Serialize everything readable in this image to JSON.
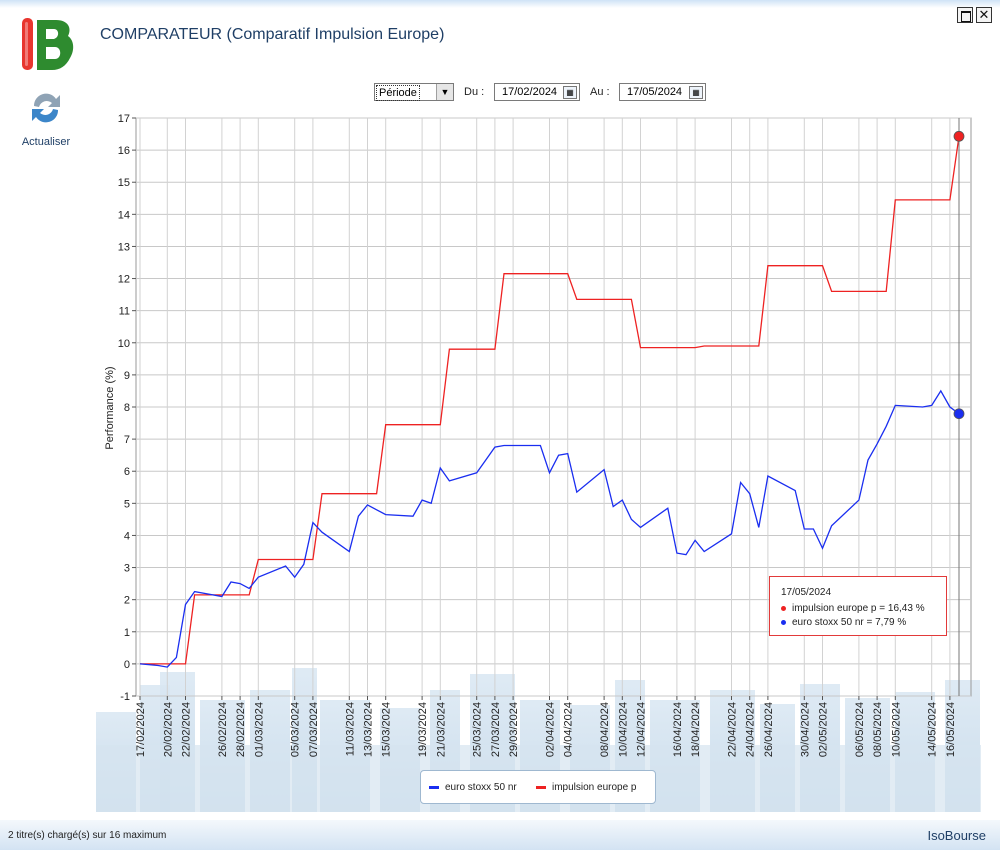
{
  "app": {
    "title": "COMPARATEUR (Comparatif Impulsion Europe)",
    "refresh_label": "Actualiser"
  },
  "window_controls": {
    "restore": "restore-icon",
    "close": "✕"
  },
  "filters": {
    "period_label": "Période",
    "from_label": "Du :",
    "from_value": "17/02/2024",
    "to_label": "Au :",
    "to_value": "17/05/2024"
  },
  "tooltip": {
    "date": "17/05/2024",
    "line1": "impulsion europe p = 16,43 %",
    "line2": "euro stoxx 50 nr = 7,79 %"
  },
  "legend": {
    "item1": "euro stoxx 50 nr",
    "item2": "impulsion europe p"
  },
  "status": {
    "left": "2 titre(s) chargé(s) sur 16 maximum",
    "right": "IsoBourse"
  },
  "colors": {
    "blue": "#1a2ef0",
    "red": "#ee2222",
    "grid": "#c8c8c8",
    "title": "#1f3f66"
  },
  "chart_data": {
    "type": "line",
    "ylabel": "Performance (%)",
    "ylim": [
      -1,
      17
    ],
    "yticks": [
      -1,
      0,
      1,
      2,
      3,
      4,
      5,
      6,
      7,
      8,
      9,
      10,
      11,
      12,
      13,
      14,
      15,
      16,
      17
    ],
    "xticks": [
      "17/02/2024",
      "20/02/2024",
      "22/02/2024",
      "26/02/2024",
      "28/02/2024",
      "01/03/2024",
      "05/03/2024",
      "07/03/2024",
      "11/03/2024",
      "13/03/2024",
      "15/03/2024",
      "19/03/2024",
      "21/03/2024",
      "25/03/2024",
      "27/03/2024",
      "29/03/2024",
      "02/04/2024",
      "04/04/2024",
      "08/04/2024",
      "10/04/2024",
      "12/04/2024",
      "16/04/2024",
      "18/04/2024",
      "22/04/2024",
      "24/04/2024",
      "26/04/2024",
      "30/04/2024",
      "02/05/2024",
      "06/05/2024",
      "08/05/2024",
      "10/05/2024",
      "14/05/2024",
      "16/05/2024"
    ],
    "series": [
      {
        "name": "euro stoxx 50 nr",
        "color": "#1a2ef0",
        "points": [
          [
            "17/02/2024",
            0
          ],
          [
            "19/02/2024",
            -0.05
          ],
          [
            "20/02/2024",
            -0.1
          ],
          [
            "21/02/2024",
            0.2
          ],
          [
            "22/02/2024",
            1.85
          ],
          [
            "23/02/2024",
            2.25
          ],
          [
            "26/02/2024",
            2.1
          ],
          [
            "27/02/2024",
            2.55
          ],
          [
            "28/02/2024",
            2.5
          ],
          [
            "29/02/2024",
            2.35
          ],
          [
            "01/03/2024",
            2.7
          ],
          [
            "04/03/2024",
            3.05
          ],
          [
            "05/03/2024",
            2.7
          ],
          [
            "06/03/2024",
            3.1
          ],
          [
            "07/03/2024",
            4.4
          ],
          [
            "08/03/2024",
            4.1
          ],
          [
            "11/03/2024",
            3.5
          ],
          [
            "12/03/2024",
            4.6
          ],
          [
            "13/03/2024",
            4.95
          ],
          [
            "14/03/2024",
            4.8
          ],
          [
            "15/03/2024",
            4.65
          ],
          [
            "18/03/2024",
            4.6
          ],
          [
            "19/03/2024",
            5.1
          ],
          [
            "20/03/2024",
            5.0
          ],
          [
            "21/03/2024",
            6.1
          ],
          [
            "22/03/2024",
            5.7
          ],
          [
            "25/03/2024",
            5.95
          ],
          [
            "26/03/2024",
            6.35
          ],
          [
            "27/03/2024",
            6.75
          ],
          [
            "28/03/2024",
            6.8
          ],
          [
            "29/03/2024",
            6.8
          ],
          [
            "01/04/2024",
            6.8
          ],
          [
            "02/04/2024",
            5.95
          ],
          [
            "03/04/2024",
            6.5
          ],
          [
            "04/04/2024",
            6.55
          ],
          [
            "05/04/2024",
            5.35
          ],
          [
            "08/04/2024",
            6.05
          ],
          [
            "09/04/2024",
            4.9
          ],
          [
            "10/04/2024",
            5.1
          ],
          [
            "11/04/2024",
            4.5
          ],
          [
            "12/04/2024",
            4.25
          ],
          [
            "15/04/2024",
            4.85
          ],
          [
            "16/04/2024",
            3.45
          ],
          [
            "17/04/2024",
            3.4
          ],
          [
            "18/04/2024",
            3.85
          ],
          [
            "19/04/2024",
            3.5
          ],
          [
            "22/04/2024",
            4.05
          ],
          [
            "23/04/2024",
            5.65
          ],
          [
            "24/04/2024",
            5.3
          ],
          [
            "25/04/2024",
            4.25
          ],
          [
            "26/04/2024",
            5.85
          ],
          [
            "29/04/2024",
            5.4
          ],
          [
            "30/04/2024",
            4.2
          ],
          [
            "01/05/2024",
            4.2
          ],
          [
            "02/05/2024",
            3.6
          ],
          [
            "03/05/2024",
            4.3
          ],
          [
            "06/05/2024",
            5.1
          ],
          [
            "07/05/2024",
            6.35
          ],
          [
            "08/05/2024",
            6.85
          ],
          [
            "09/05/2024",
            7.4
          ],
          [
            "10/05/2024",
            8.05
          ],
          [
            "13/05/2024",
            8.0
          ],
          [
            "14/05/2024",
            8.05
          ],
          [
            "15/05/2024",
            8.5
          ],
          [
            "16/05/2024",
            8.0
          ],
          [
            "17/05/2024",
            7.79
          ]
        ]
      },
      {
        "name": "impulsion europe p",
        "color": "#ee2222",
        "points": [
          [
            "17/02/2024",
            0
          ],
          [
            "19/02/2024",
            0
          ],
          [
            "20/02/2024",
            0
          ],
          [
            "21/02/2024",
            0
          ],
          [
            "22/02/2024",
            0
          ],
          [
            "23/02/2024",
            2.15
          ],
          [
            "26/02/2024",
            2.15
          ],
          [
            "27/02/2024",
            2.15
          ],
          [
            "28/02/2024",
            2.15
          ],
          [
            "29/02/2024",
            2.15
          ],
          [
            "01/03/2024",
            3.25
          ],
          [
            "04/03/2024",
            3.25
          ],
          [
            "05/03/2024",
            3.25
          ],
          [
            "06/03/2024",
            3.25
          ],
          [
            "07/03/2024",
            3.25
          ],
          [
            "08/03/2024",
            5.3
          ],
          [
            "11/03/2024",
            5.3
          ],
          [
            "12/03/2024",
            5.3
          ],
          [
            "13/03/2024",
            5.3
          ],
          [
            "14/03/2024",
            5.3
          ],
          [
            "15/03/2024",
            7.45
          ],
          [
            "18/03/2024",
            7.45
          ],
          [
            "19/03/2024",
            7.45
          ],
          [
            "20/03/2024",
            7.45
          ],
          [
            "21/03/2024",
            7.45
          ],
          [
            "22/03/2024",
            9.8
          ],
          [
            "25/03/2024",
            9.8
          ],
          [
            "26/03/2024",
            9.8
          ],
          [
            "27/03/2024",
            9.8
          ],
          [
            "28/03/2024",
            12.15
          ],
          [
            "29/03/2024",
            12.15
          ],
          [
            "01/04/2024",
            12.15
          ],
          [
            "02/04/2024",
            12.15
          ],
          [
            "03/04/2024",
            12.15
          ],
          [
            "04/04/2024",
            12.15
          ],
          [
            "05/04/2024",
            11.35
          ],
          [
            "08/04/2024",
            11.35
          ],
          [
            "09/04/2024",
            11.35
          ],
          [
            "10/04/2024",
            11.35
          ],
          [
            "11/04/2024",
            11.35
          ],
          [
            "12/04/2024",
            9.85
          ],
          [
            "15/04/2024",
            9.85
          ],
          [
            "16/04/2024",
            9.85
          ],
          [
            "17/04/2024",
            9.85
          ],
          [
            "18/04/2024",
            9.85
          ],
          [
            "19/04/2024",
            9.9
          ],
          [
            "22/04/2024",
            9.9
          ],
          [
            "23/04/2024",
            9.9
          ],
          [
            "24/04/2024",
            9.9
          ],
          [
            "25/04/2024",
            9.9
          ],
          [
            "26/04/2024",
            12.4
          ],
          [
            "29/04/2024",
            12.4
          ],
          [
            "30/04/2024",
            12.4
          ],
          [
            "01/05/2024",
            12.4
          ],
          [
            "02/05/2024",
            12.4
          ],
          [
            "03/05/2024",
            11.6
          ],
          [
            "06/05/2024",
            11.6
          ],
          [
            "07/05/2024",
            11.6
          ],
          [
            "08/05/2024",
            11.6
          ],
          [
            "09/05/2024",
            11.6
          ],
          [
            "10/05/2024",
            14.45
          ],
          [
            "13/05/2024",
            14.45
          ],
          [
            "14/05/2024",
            14.45
          ],
          [
            "15/05/2024",
            14.45
          ],
          [
            "16/05/2024",
            14.45
          ],
          [
            "17/05/2024",
            16.43
          ]
        ]
      }
    ],
    "marker_date": "17/05/2024",
    "grid": true,
    "legend_position": "bottom-center"
  }
}
